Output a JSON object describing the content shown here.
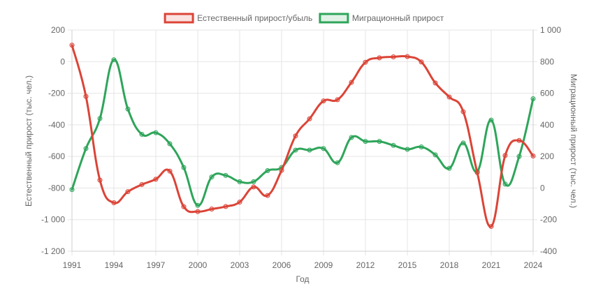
{
  "chart_data": {
    "type": "line",
    "title": "",
    "xlabel": "Год",
    "ylabel_left": "Естественный прирост (тыс. чел.)",
    "ylabel_right": "Миграционный прирост (тыс. чел.)",
    "x_ticks": [
      "1991",
      "1994",
      "1997",
      "2000",
      "2003",
      "2006",
      "2009",
      "2012",
      "2015",
      "2018",
      "2021",
      "2024"
    ],
    "y_left_ticks": [
      "200",
      "0",
      "-200",
      "-400",
      "-600",
      "-800",
      "-1 000",
      "-1 200"
    ],
    "y_right_ticks": [
      "1 000",
      "800",
      "600",
      "400",
      "200",
      "0",
      "-200",
      "-400"
    ],
    "ylim_left": [
      -1200,
      200
    ],
    "ylim_right": [
      -400,
      1000
    ],
    "xlim": [
      1991,
      2024
    ],
    "grid": true,
    "legend_position": "top-center",
    "x": [
      1991,
      1992,
      1993,
      1994,
      1995,
      1996,
      1997,
      1998,
      1999,
      2000,
      2001,
      2002,
      2003,
      2004,
      2005,
      2006,
      2007,
      2008,
      2009,
      2010,
      2011,
      2012,
      2013,
      2014,
      2015,
      2016,
      2017,
      2018,
      2019,
      2020,
      2021,
      2022,
      2023,
      2024
    ],
    "series": [
      {
        "name": "Естественный прирост/убыль",
        "axis": "left",
        "color": "#db4437",
        "values": [
          104,
          -220,
          -750,
          -893,
          -823,
          -778,
          -744,
          -693,
          -918,
          -949,
          -933,
          -917,
          -889,
          -793,
          -847,
          -688,
          -470,
          -362,
          -249,
          -241,
          -131,
          -4,
          24,
          30,
          32,
          -2,
          -135,
          -224,
          -317,
          -702,
          -1043,
          -594,
          -499,
          -597
        ]
      },
      {
        "name": "Миграционный прирост",
        "axis": "right",
        "color": "#2ea55a",
        "values": [
          -10,
          250,
          440,
          812,
          500,
          340,
          350,
          280,
          130,
          -110,
          70,
          80,
          40,
          40,
          110,
          130,
          240,
          240,
          250,
          160,
          320,
          295,
          295,
          270,
          245,
          260,
          210,
          125,
          285,
          105,
          430,
          25,
          200,
          565
        ]
      }
    ]
  }
}
